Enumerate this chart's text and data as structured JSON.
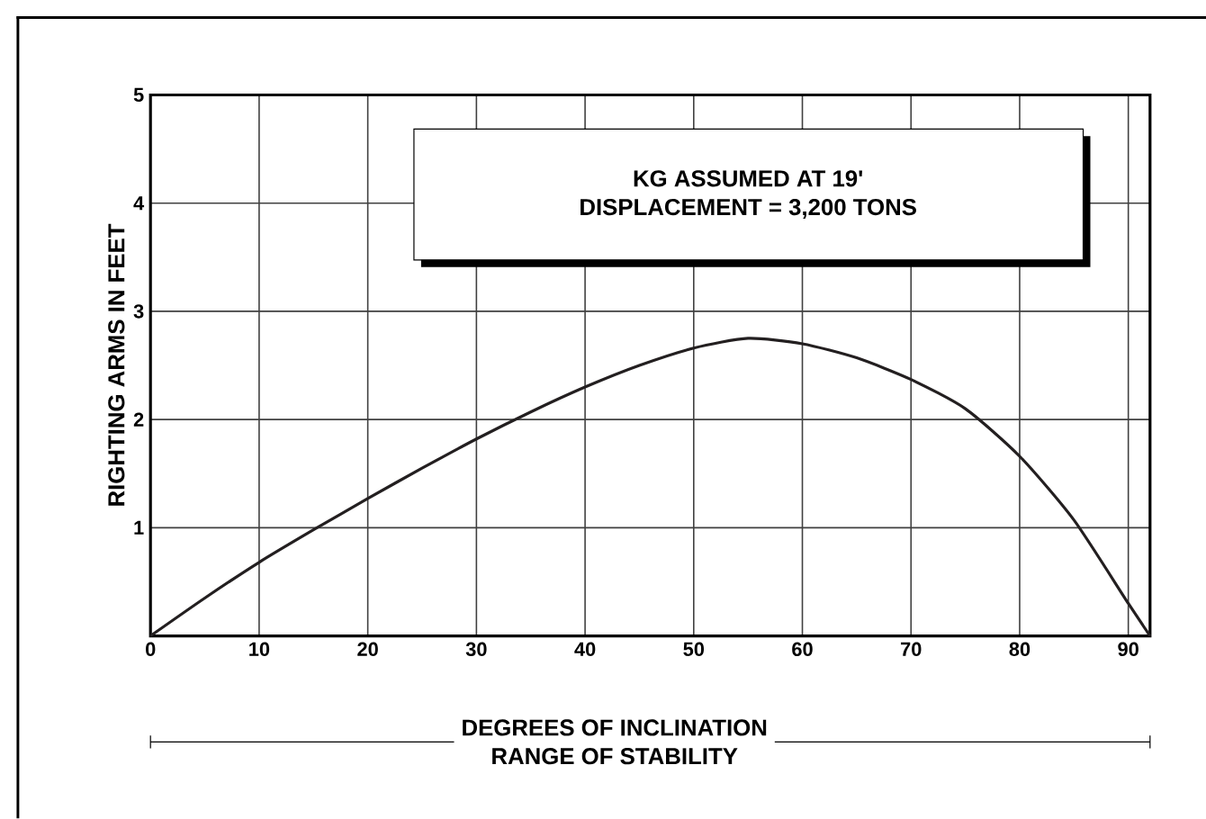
{
  "chart_data": {
    "type": "line",
    "xlabel": "DEGREES OF INCLINATION",
    "ylabel": "RIGHTING ARMS IN FEET",
    "annotations": [
      "KG ASSUMED AT 19'",
      "DISPLACEMENT =  3,200 TONS",
      "RANGE OF STABILITY"
    ],
    "x": [
      0,
      5,
      10,
      15,
      20,
      25,
      30,
      35,
      40,
      45,
      50,
      55,
      60,
      65,
      70,
      75,
      80,
      85,
      90,
      92
    ],
    "series": [
      {
        "color": "#231f20",
        "values": [
          0,
          0.35,
          0.68,
          0.98,
          1.27,
          1.55,
          1.82,
          2.07,
          2.3,
          2.5,
          2.66,
          2.75,
          2.7,
          2.57,
          2.37,
          2.1,
          1.66,
          1.07,
          0.3,
          0
        ]
      }
    ],
    "xlim": [
      0,
      92
    ],
    "ylim": [
      0,
      5
    ],
    "xticks": [
      0,
      10,
      20,
      30,
      40,
      50,
      60,
      70,
      80,
      90
    ],
    "yticks": [
      1,
      2,
      3,
      4,
      5
    ],
    "grid": true,
    "marker": "none",
    "line_style": "solid"
  }
}
